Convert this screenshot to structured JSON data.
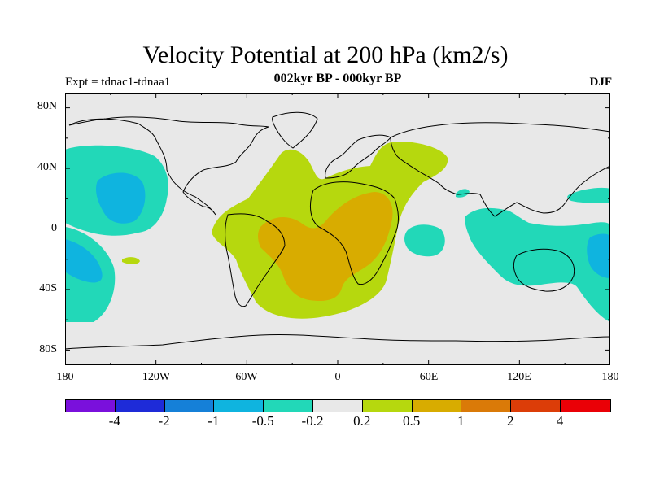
{
  "title": "Velocity Potential at 200 hPa (km2/s)",
  "subtitle": "002kyr BP - 000kyr BP",
  "experiment_label": "Expt = tdnac1-tdnaa1",
  "season_label": "DJF",
  "chart_data": {
    "type": "heatmap",
    "projection": "cylindrical-equidistant",
    "variable": "Velocity Potential at 200 hPa",
    "units": "km2/s",
    "lon_range": [
      -180,
      180
    ],
    "lat_range": [
      -90,
      90
    ],
    "x_ticks": [
      "180",
      "120W",
      "60W",
      "0",
      "60E",
      "120E",
      "180"
    ],
    "y_ticks": [
      "80N",
      "40N",
      "0",
      "40S",
      "80S"
    ],
    "colorbar": {
      "levels": [
        "-4",
        "-2",
        "-1",
        "-0.5",
        "-0.2",
        "0.2",
        "0.5",
        "1",
        "2",
        "4"
      ],
      "colors": [
        "#7a10dc",
        "#1e2bd8",
        "#1580d8",
        "#0fb4df",
        "#22d8b8",
        "#e8e8e8",
        "#b6d80e",
        "#d8ac00",
        "#da7a08",
        "#dc3d08",
        "#ea0006"
      ]
    },
    "regions": [
      {
        "label": "Africa / South Atlantic / South America positive maximum",
        "band": "0.5 to 1",
        "center_lon": 10,
        "center_lat": -5
      },
      {
        "label": "Tropical Atlantic / Eurasia positive area",
        "band": "0.2 to 0.5",
        "center_lon": -5,
        "center_lat": 10
      },
      {
        "label": "North Pacific negative area",
        "band": "-0.5 to -0.2",
        "center_lon": -150,
        "center_lat": 30
      },
      {
        "label": "North Pacific negative core",
        "band": "-1 to -0.5",
        "center_lon": -145,
        "center_lat": 20
      },
      {
        "label": "Maritime Continent / Australia negative area",
        "band": "-0.5 to -0.2",
        "center_lon": 140,
        "center_lat": -15
      },
      {
        "label": "Southwest Pacific negative core",
        "band": "-1 to -0.5",
        "center_lon": 175,
        "center_lat": -20
      },
      {
        "label": "Southeast Pacific negative core",
        "band": "-1 to -0.5",
        "center_lon": -168,
        "center_lat": -20
      },
      {
        "label": "Western Indian Ocean negative area",
        "band": "-0.5 to -0.2",
        "center_lon": 60,
        "center_lat": -10
      }
    ]
  }
}
